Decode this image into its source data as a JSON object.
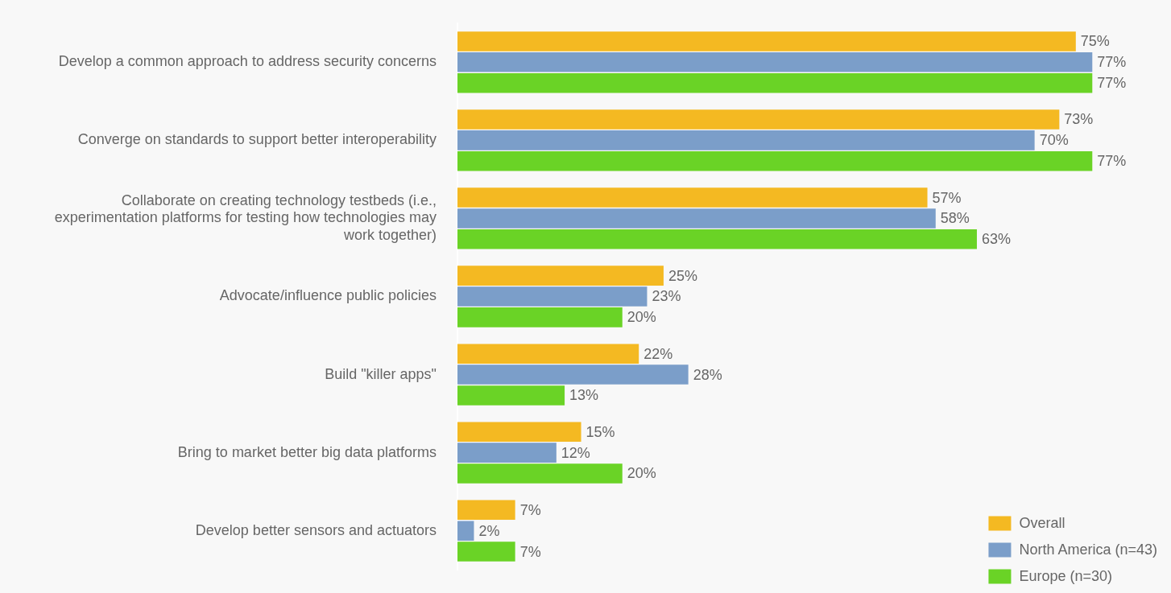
{
  "chart_data": {
    "type": "bar",
    "orientation": "horizontal",
    "categories": [
      "Develop a common approach to address security concerns",
      "Converge on standards to support better interoperability",
      "Collaborate on creating technology testbeds (i.e., experimentation platforms for testing how technologies may work together)",
      "Advocate/influence public policies",
      "Build \"killer apps\"",
      "Bring to market better big data platforms",
      "Develop better sensors and actuators"
    ],
    "series": [
      {
        "name": "Overall",
        "color": "#f4b922",
        "values": [
          75,
          73,
          57,
          25,
          22,
          15,
          7
        ],
        "value_labels": [
          "75%",
          "73%",
          "57%",
          "25%",
          "22%",
          "15%",
          "7%"
        ]
      },
      {
        "name": "North America (n=43)",
        "color": "#7b9ec9",
        "values": [
          77,
          70,
          58,
          23,
          28,
          12,
          2
        ],
        "value_labels": [
          "77%",
          "70%",
          "58%",
          "23%",
          "28%",
          "12%",
          "2%"
        ]
      },
      {
        "name": "Europe (n=30)",
        "color": "#6ad326",
        "values": [
          77,
          77,
          63,
          20,
          13,
          20,
          7
        ],
        "value_labels": [
          "77%",
          "77%",
          "63%",
          "20%",
          "13%",
          "20%",
          "7%"
        ]
      }
    ],
    "tick_labels": "y",
    "legend": "bottom right"
  }
}
